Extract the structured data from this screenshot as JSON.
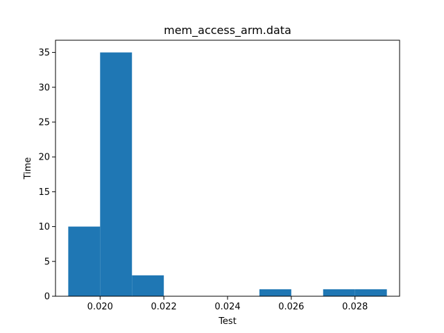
{
  "chart_data": {
    "type": "bar",
    "title": "mem_access_arm.data",
    "xlabel": "Test",
    "ylabel": "Time",
    "bin_edges": [
      0.019,
      0.02,
      0.021,
      0.022,
      0.023,
      0.024,
      0.025,
      0.026,
      0.027,
      0.028,
      0.029
    ],
    "values": [
      10,
      35,
      3,
      0,
      0,
      0,
      1,
      0,
      1,
      1
    ],
    "xlim": [
      0.0186,
      0.0294
    ],
    "ylim": [
      0,
      36.75
    ],
    "xticks": [
      0.02,
      0.022,
      0.024,
      0.026,
      0.028
    ],
    "xtick_labels": [
      "0.020",
      "0.022",
      "0.024",
      "0.026",
      "0.028"
    ],
    "yticks": [
      0,
      5,
      10,
      15,
      20,
      25,
      30,
      35
    ],
    "ytick_labels": [
      "0",
      "5",
      "10",
      "15",
      "20",
      "25",
      "30",
      "35"
    ],
    "grid": false,
    "bar_color": "#1f77b4"
  }
}
